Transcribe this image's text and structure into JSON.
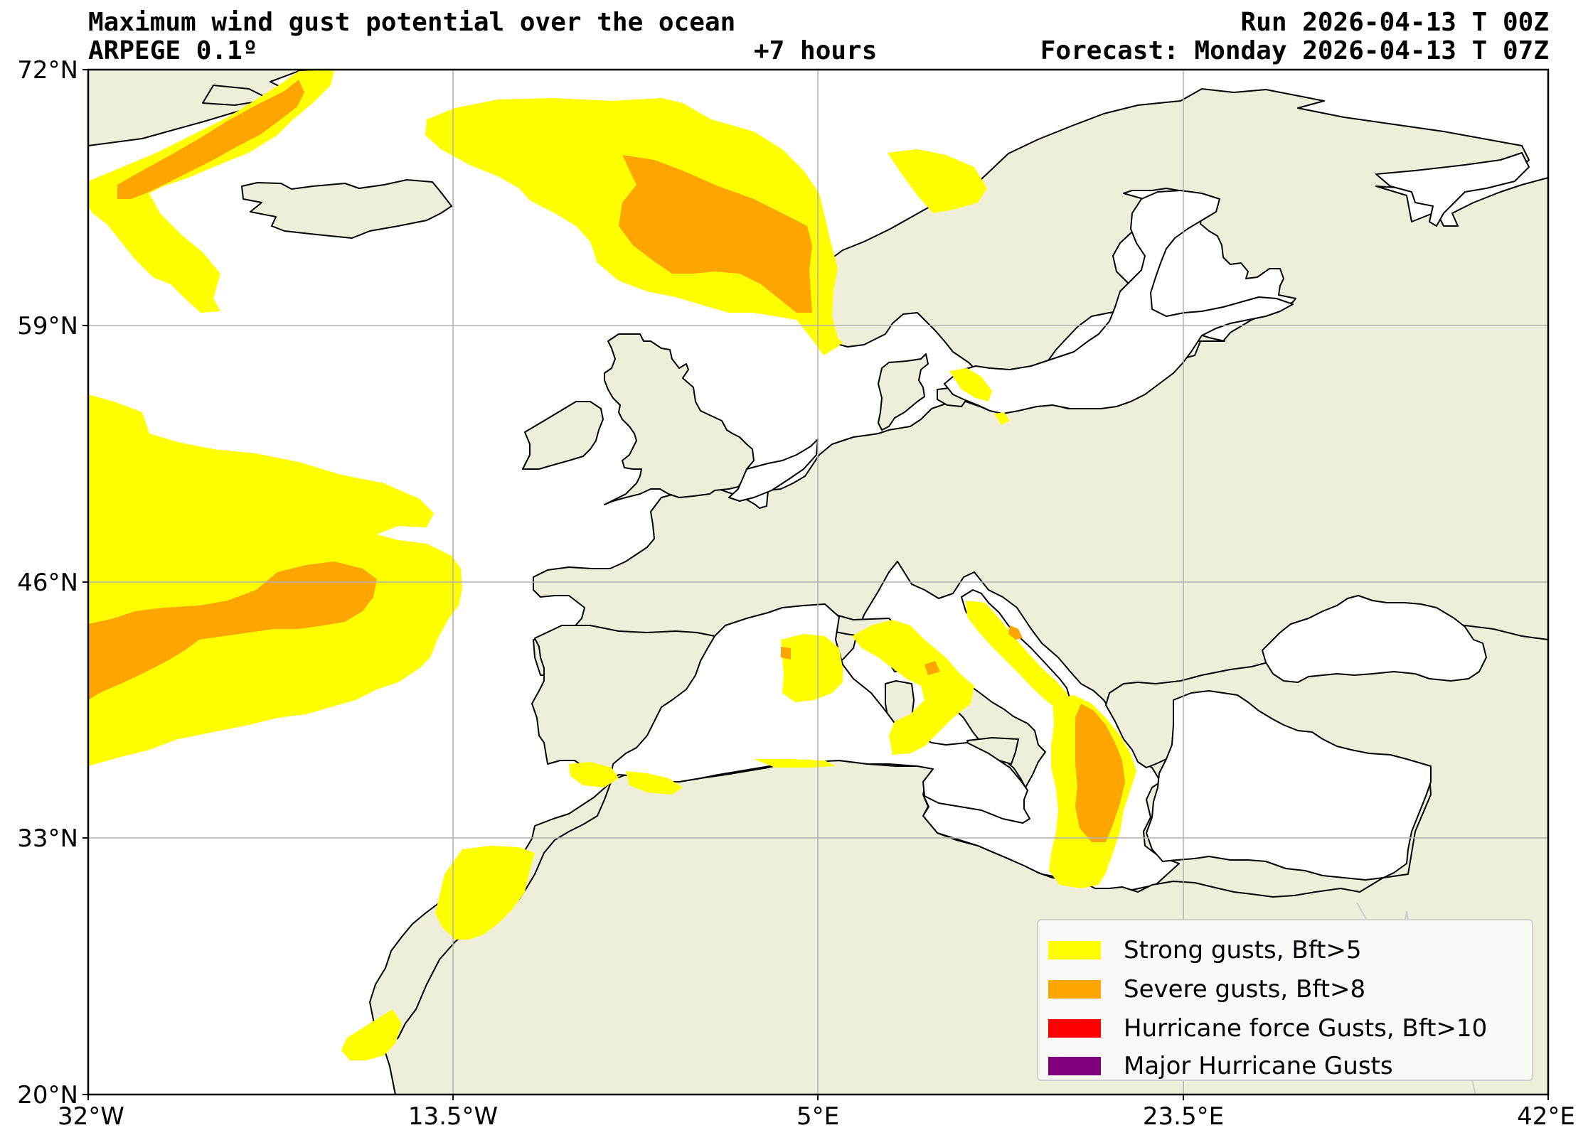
{
  "header": {
    "title": "Maximum wind gust potential over the ocean",
    "run": "Run 2026-04-13 T 00Z",
    "model": "ARPEGE 0.1º",
    "lead_time": "+7 hours",
    "forecast": "Forecast: Monday 2026-04-13 T 07Z"
  },
  "map": {
    "extent": {
      "lon": [
        -32,
        42
      ],
      "lat": [
        20,
        72
      ]
    },
    "lat_ticks": [
      "72°N",
      "59°N",
      "46°N",
      "33°N",
      "20°N"
    ],
    "lon_ticks": [
      "32°W",
      "13.5°W",
      "5°E",
      "23.5°E",
      "42°E"
    ],
    "land_color": "#efeedb",
    "ocean_color": "#ffffff",
    "gridlines": true
  },
  "legend": {
    "position": "bottom-right",
    "items": [
      {
        "label": "Strong gusts, Bft>5",
        "color": "#ffff00"
      },
      {
        "label": "Severe gusts, Bft>8",
        "color": "#ffa500"
      },
      {
        "label": "Hurricane force Gusts, Bft>10",
        "color": "#ff0000"
      },
      {
        "label": "Major Hurricane Gusts",
        "color": "#800080"
      }
    ]
  }
}
